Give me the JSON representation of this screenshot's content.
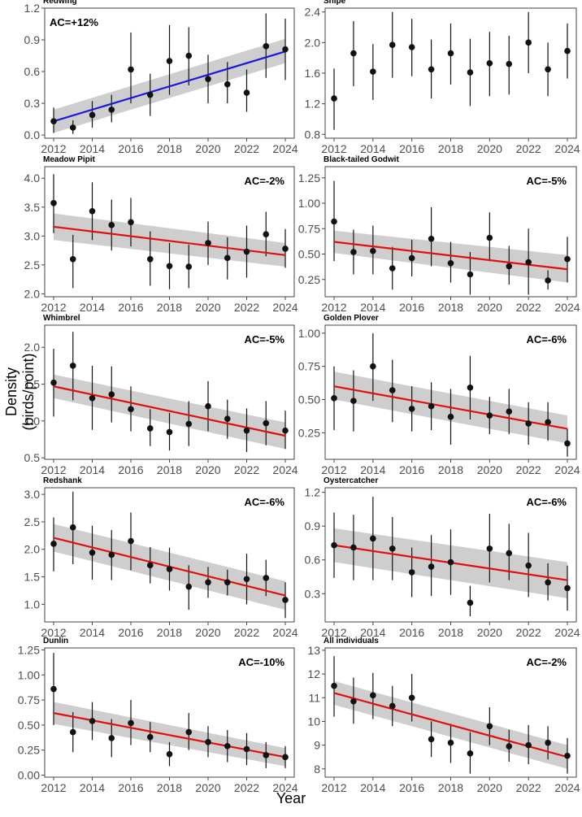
{
  "figure": {
    "ylabel": "Density (birds/point)",
    "xlabel": "Year"
  },
  "colors": {
    "trend_up": "#1a1ad6",
    "trend_down": "#e01010",
    "ribbon": "#bdbdbd",
    "point": "#111111",
    "frame": "#444444",
    "tick_text": "#4d4d4d"
  },
  "chart_data": [
    {
      "type": "scatter",
      "title": "Redwing",
      "annotation": "AC=+12%",
      "x": [
        2012,
        2013,
        2014,
        2015,
        2016,
        2017,
        2018,
        2019,
        2020,
        2021,
        2022,
        2023,
        2024
      ],
      "y": [
        0.13,
        0.07,
        0.19,
        0.24,
        0.62,
        0.38,
        0.7,
        0.75,
        0.53,
        0.48,
        0.4,
        0.84,
        0.81
      ],
      "ylo": [
        0.02,
        0.01,
        0.07,
        0.12,
        0.3,
        0.18,
        0.38,
        0.47,
        0.3,
        0.3,
        0.22,
        0.54,
        0.52
      ],
      "yhi": [
        0.26,
        0.14,
        0.32,
        0.38,
        0.97,
        0.58,
        1.04,
        1.02,
        0.76,
        0.69,
        0.62,
        1.15,
        1.1
      ],
      "trend": {
        "color": "blue",
        "y_start": 0.13,
        "y_end": 0.79,
        "ribbon_start": [
          0.02,
          0.24
        ],
        "ribbon_end": [
          0.68,
          0.91
        ]
      },
      "ylim": [
        -0.03,
        1.2
      ],
      "yticks": [
        0.0,
        0.3,
        0.6,
        0.9,
        1.2
      ],
      "ytick_labels": [
        "0.0",
        "0.3",
        "0.6",
        "0.9",
        "1.2"
      ],
      "xticks": [
        2012,
        2014,
        2016,
        2018,
        2020,
        2022,
        2024
      ]
    },
    {
      "type": "scatter",
      "title": "Snipe",
      "annotation": "",
      "x": [
        2012,
        2013,
        2014,
        2015,
        2016,
        2017,
        2018,
        2019,
        2020,
        2021,
        2022,
        2023,
        2024
      ],
      "y": [
        1.27,
        1.86,
        1.62,
        1.97,
        1.94,
        1.65,
        1.86,
        1.61,
        1.73,
        1.72,
        2.0,
        1.65,
        1.89
      ],
      "ylo": [
        0.86,
        1.43,
        1.25,
        1.54,
        1.56,
        1.27,
        1.45,
        1.17,
        1.3,
        1.32,
        1.6,
        1.3,
        1.53
      ],
      "yhi": [
        1.66,
        2.28,
        1.98,
        2.4,
        2.31,
        2.04,
        2.25,
        2.05,
        2.14,
        2.09,
        2.4,
        2.0,
        2.25
      ],
      "trend": null,
      "ylim": [
        0.75,
        2.45
      ],
      "yticks": [
        0.8,
        1.2,
        1.6,
        2.0,
        2.4
      ],
      "ytick_labels": [
        "0.8",
        "1.2",
        "1.6",
        "2.0",
        "2.4"
      ],
      "xticks": [
        2012,
        2014,
        2016,
        2018,
        2020,
        2022,
        2024
      ]
    },
    {
      "type": "scatter",
      "title": "Meadow Pipit",
      "annotation": "AC=-2%",
      "x": [
        2012,
        2013,
        2014,
        2015,
        2016,
        2017,
        2018,
        2019,
        2020,
        2021,
        2022,
        2023,
        2024
      ],
      "y": [
        3.57,
        2.6,
        3.43,
        3.19,
        3.24,
        2.6,
        2.48,
        2.47,
        2.88,
        2.62,
        2.73,
        3.03,
        2.78
      ],
      "ylo": [
        3.05,
        2.1,
        2.93,
        2.75,
        2.82,
        2.14,
        2.08,
        2.1,
        2.5,
        2.25,
        2.28,
        2.65,
        2.45
      ],
      "yhi": [
        4.07,
        3.02,
        3.93,
        3.63,
        3.66,
        3.08,
        2.88,
        2.85,
        3.25,
        2.98,
        3.18,
        3.42,
        3.12
      ],
      "trend": {
        "color": "red",
        "y_start": 3.16,
        "y_end": 2.67,
        "ribbon_start": [
          2.93,
          3.39
        ],
        "ribbon_end": [
          2.47,
          2.88
        ]
      },
      "ylim": [
        1.95,
        4.2
      ],
      "yticks": [
        2.0,
        2.5,
        3.0,
        3.5,
        4.0
      ],
      "ytick_labels": [
        "2.0",
        "2.5",
        "3.0",
        "3.5",
        "4.0"
      ],
      "xticks": [
        2012,
        2014,
        2016,
        2018,
        2020,
        2022,
        2024
      ]
    },
    {
      "type": "scatter",
      "title": "Black-tailed Godwit",
      "annotation": "AC=-5%",
      "x": [
        2012,
        2013,
        2014,
        2015,
        2016,
        2017,
        2018,
        2019,
        2020,
        2021,
        2022,
        2023,
        2024
      ],
      "y": [
        0.82,
        0.52,
        0.53,
        0.36,
        0.46,
        0.65,
        0.41,
        0.3,
        0.66,
        0.38,
        0.42,
        0.24,
        0.45
      ],
      "ylo": [
        0.43,
        0.3,
        0.3,
        0.15,
        0.28,
        0.38,
        0.22,
        0.1,
        0.43,
        0.2,
        0.1,
        0.15,
        0.22
      ],
      "yhi": [
        1.22,
        0.74,
        0.78,
        0.57,
        0.64,
        0.96,
        0.62,
        0.52,
        0.91,
        0.58,
        0.75,
        0.34,
        0.67
      ],
      "trend": {
        "color": "red",
        "y_start": 0.62,
        "y_end": 0.35,
        "ribbon_start": [
          0.51,
          0.73
        ],
        "ribbon_end": [
          0.22,
          0.49
        ]
      },
      "ylim": [
        0.08,
        1.36
      ],
      "yticks": [
        0.25,
        0.5,
        0.75,
        1.0,
        1.25
      ],
      "ytick_labels": [
        "0.25",
        "0.50",
        "0.75",
        "1.00",
        "1.25"
      ],
      "xticks": [
        2012,
        2014,
        2016,
        2018,
        2020,
        2022,
        2024
      ]
    },
    {
      "type": "scatter",
      "title": "Whimbrel",
      "annotation": "AC=-5%",
      "x": [
        2012,
        2013,
        2014,
        2015,
        2016,
        2017,
        2018,
        2019,
        2020,
        2021,
        2022,
        2023,
        2024
      ],
      "y": [
        1.52,
        1.75,
        1.31,
        1.36,
        1.16,
        0.9,
        0.85,
        0.96,
        1.2,
        1.03,
        0.87,
        0.97,
        0.87
      ],
      "ylo": [
        1.06,
        1.28,
        0.88,
        0.98,
        0.86,
        0.66,
        0.6,
        0.66,
        0.86,
        0.76,
        0.58,
        0.67,
        0.62
      ],
      "yhi": [
        1.98,
        2.21,
        1.75,
        1.74,
        1.47,
        1.16,
        1.11,
        1.27,
        1.54,
        1.29,
        1.17,
        1.27,
        1.14
      ],
      "trend": {
        "color": "red",
        "y_start": 1.47,
        "y_end": 0.8,
        "ribbon_start": [
          1.31,
          1.63
        ],
        "ribbon_end": [
          0.62,
          0.98
        ]
      },
      "ylim": [
        0.48,
        2.3
      ],
      "yticks": [
        0.5,
        1.0,
        1.5,
        2.0
      ],
      "ytick_labels": [
        "0.5",
        "1.0",
        "1.5",
        "2.0"
      ],
      "xticks": [
        2012,
        2014,
        2016,
        2018,
        2020,
        2022,
        2024
      ]
    },
    {
      "type": "scatter",
      "title": "Golden Plover",
      "annotation": "AC=-6%",
      "x": [
        2012,
        2013,
        2014,
        2015,
        2016,
        2017,
        2018,
        2019,
        2020,
        2021,
        2022,
        2023,
        2024
      ],
      "y": [
        0.51,
        0.49,
        0.75,
        0.57,
        0.43,
        0.45,
        0.37,
        0.59,
        0.38,
        0.41,
        0.32,
        0.33,
        0.17
      ],
      "ylo": [
        0.27,
        0.26,
        0.49,
        0.33,
        0.26,
        0.27,
        0.16,
        0.35,
        0.24,
        0.24,
        0.16,
        0.19,
        0.07
      ],
      "yhi": [
        0.75,
        0.72,
        1.0,
        0.8,
        0.6,
        0.63,
        0.58,
        0.83,
        0.52,
        0.58,
        0.48,
        0.48,
        0.28
      ],
      "trend": {
        "color": "red",
        "y_start": 0.6,
        "y_end": 0.28,
        "ribbon_start": [
          0.5,
          0.71
        ],
        "ribbon_end": [
          0.17,
          0.38
        ]
      },
      "ylim": [
        0.05,
        1.06
      ],
      "yticks": [
        0.25,
        0.5,
        0.75,
        1.0
      ],
      "ytick_labels": [
        "0.25",
        "0.50",
        "0.75",
        "1.00"
      ],
      "xticks": [
        2012,
        2014,
        2016,
        2018,
        2020,
        2022,
        2024
      ]
    },
    {
      "type": "scatter",
      "title": "Redshank",
      "annotation": "AC=-6%",
      "x": [
        2012,
        2013,
        2014,
        2015,
        2016,
        2017,
        2018,
        2019,
        2020,
        2021,
        2022,
        2023,
        2024
      ],
      "y": [
        2.1,
        2.4,
        1.94,
        1.9,
        2.15,
        1.71,
        1.64,
        1.32,
        1.4,
        1.4,
        1.46,
        1.48,
        1.08
      ],
      "ylo": [
        1.6,
        1.73,
        1.45,
        1.44,
        1.62,
        1.38,
        1.25,
        0.9,
        1.12,
        1.16,
        1.0,
        1.15,
        0.75
      ],
      "yhi": [
        2.58,
        3.05,
        2.43,
        2.35,
        2.67,
        2.04,
        2.03,
        1.71,
        1.68,
        1.63,
        1.92,
        1.81,
        1.4
      ],
      "trend": {
        "color": "red",
        "y_start": 2.21,
        "y_end": 1.16,
        "ribbon_start": [
          1.96,
          2.46
        ],
        "ribbon_end": [
          0.9,
          1.42
        ]
      },
      "ylim": [
        0.68,
        3.12
      ],
      "yticks": [
        1.0,
        1.5,
        2.0,
        2.5,
        3.0
      ],
      "ytick_labels": [
        "1.0",
        "1.5",
        "2.0",
        "2.5",
        "3.0"
      ],
      "xticks": [
        2012,
        2014,
        2016,
        2018,
        2020,
        2022,
        2024
      ]
    },
    {
      "type": "scatter",
      "title": "Oystercatcher",
      "annotation": "AC=-6%",
      "x": [
        2012,
        2013,
        2014,
        2015,
        2016,
        2017,
        2018,
        2019,
        2020,
        2021,
        2022,
        2023,
        2024
      ],
      "y": [
        0.73,
        0.71,
        0.79,
        0.7,
        0.49,
        0.54,
        0.58,
        0.22,
        0.7,
        0.66,
        0.55,
        0.4,
        0.35
      ],
      "ylo": [
        0.44,
        0.42,
        0.42,
        0.42,
        0.27,
        0.28,
        0.29,
        0.1,
        0.4,
        0.42,
        0.27,
        0.24,
        0.15
      ],
      "yhi": [
        1.02,
        1.0,
        1.16,
        0.98,
        0.71,
        0.82,
        0.87,
        0.37,
        1.01,
        0.92,
        0.84,
        0.57,
        0.55
      ],
      "trend": {
        "color": "red",
        "y_start": 0.73,
        "y_end": 0.42,
        "ribbon_start": [
          0.58,
          0.88
        ],
        "ribbon_end": [
          0.26,
          0.58
        ]
      },
      "ylim": [
        0.05,
        1.24
      ],
      "yticks": [
        0.3,
        0.6,
        0.9,
        1.2
      ],
      "ytick_labels": [
        "0.3",
        "0.6",
        "0.9",
        "1.2"
      ],
      "xticks": [
        2012,
        2014,
        2016,
        2018,
        2020,
        2022,
        2024
      ]
    },
    {
      "type": "scatter",
      "title": "Dunlin",
      "annotation": "AC=-10%",
      "x": [
        2012,
        2013,
        2014,
        2015,
        2016,
        2017,
        2018,
        2019,
        2020,
        2021,
        2022,
        2023,
        2024
      ],
      "y": [
        0.86,
        0.43,
        0.54,
        0.37,
        0.52,
        0.38,
        0.21,
        0.43,
        0.33,
        0.29,
        0.26,
        0.2,
        0.18
      ],
      "ylo": [
        0.5,
        0.23,
        0.35,
        0.18,
        0.3,
        0.23,
        0.09,
        0.25,
        0.18,
        0.13,
        0.1,
        0.07,
        0.07
      ],
      "yhi": [
        1.22,
        0.63,
        0.73,
        0.56,
        0.75,
        0.53,
        0.33,
        0.62,
        0.49,
        0.45,
        0.42,
        0.33,
        0.29
      ],
      "trend": {
        "color": "red",
        "y_start": 0.62,
        "y_end": 0.18,
        "ribbon_start": [
          0.51,
          0.73
        ],
        "ribbon_end": [
          0.09,
          0.27
        ]
      },
      "ylim": [
        -0.02,
        1.27
      ],
      "yticks": [
        0.0,
        0.25,
        0.5,
        0.75,
        1.0,
        1.25
      ],
      "ytick_labels": [
        "0.00",
        "0.25",
        "0.50",
        "0.75",
        "1.00",
        "1.25"
      ],
      "xticks": [
        2012,
        2014,
        2016,
        2018,
        2020,
        2022,
        2024
      ]
    },
    {
      "type": "scatter",
      "title": "All individuals",
      "annotation": "AC=-2%",
      "x": [
        2012,
        2013,
        2014,
        2015,
        2016,
        2017,
        2018,
        2019,
        2020,
        2021,
        2022,
        2023,
        2024
      ],
      "y": [
        11.5,
        10.85,
        11.1,
        10.65,
        11.0,
        9.25,
        9.1,
        8.65,
        9.8,
        8.95,
        9.0,
        9.1,
        8.55
      ],
      "ylo": [
        10.2,
        9.9,
        10.1,
        9.8,
        10.0,
        8.5,
        8.25,
        7.8,
        9.0,
        8.3,
        8.2,
        8.4,
        7.8
      ],
      "yhi": [
        12.75,
        11.85,
        12.05,
        11.5,
        12.0,
        10.0,
        9.9,
        9.55,
        10.6,
        9.65,
        9.85,
        9.8,
        9.3
      ],
      "trend": {
        "color": "red",
        "y_start": 11.2,
        "y_end": 8.5,
        "ribbon_start": [
          10.7,
          11.7
        ],
        "ribbon_end": [
          8.0,
          9.0
        ]
      },
      "ylim": [
        7.65,
        13.1
      ],
      "yticks": [
        8,
        9,
        10,
        11,
        12,
        13
      ],
      "ytick_labels": [
        "8",
        "9",
        "10",
        "11",
        "12",
        "13"
      ],
      "xticks": [
        2012,
        2014,
        2016,
        2018,
        2020,
        2022,
        2024
      ]
    }
  ]
}
